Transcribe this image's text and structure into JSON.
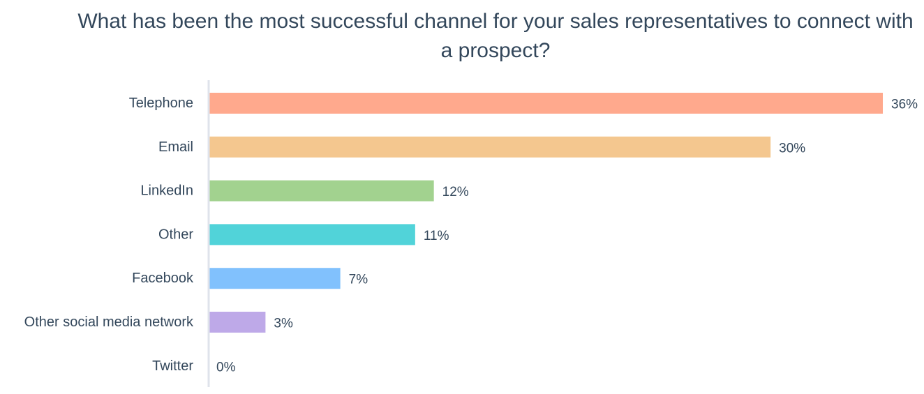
{
  "chart_data": {
    "type": "bar",
    "orientation": "horizontal",
    "title": "What has been the most successful channel for your sales representatives to connect with a prospect?",
    "categories": [
      "Telephone",
      "Email",
      "LinkedIn",
      "Other",
      "Facebook",
      "Other social media network",
      "Twitter"
    ],
    "values": [
      36,
      30,
      12,
      11,
      7,
      3,
      0
    ],
    "value_labels": [
      "36%",
      "30%",
      "12%",
      "11%",
      "7%",
      "3%",
      "0%"
    ],
    "colors": [
      "#ffa98d",
      "#f4c78f",
      "#a2d28f",
      "#51d3d9",
      "#81c1fd",
      "#bea9e8",
      "#cccccc"
    ],
    "axis_color": "#dfe3eb",
    "xlim": [
      0,
      36
    ],
    "grid": false,
    "legend": "none",
    "xlabel": "",
    "ylabel": ""
  }
}
